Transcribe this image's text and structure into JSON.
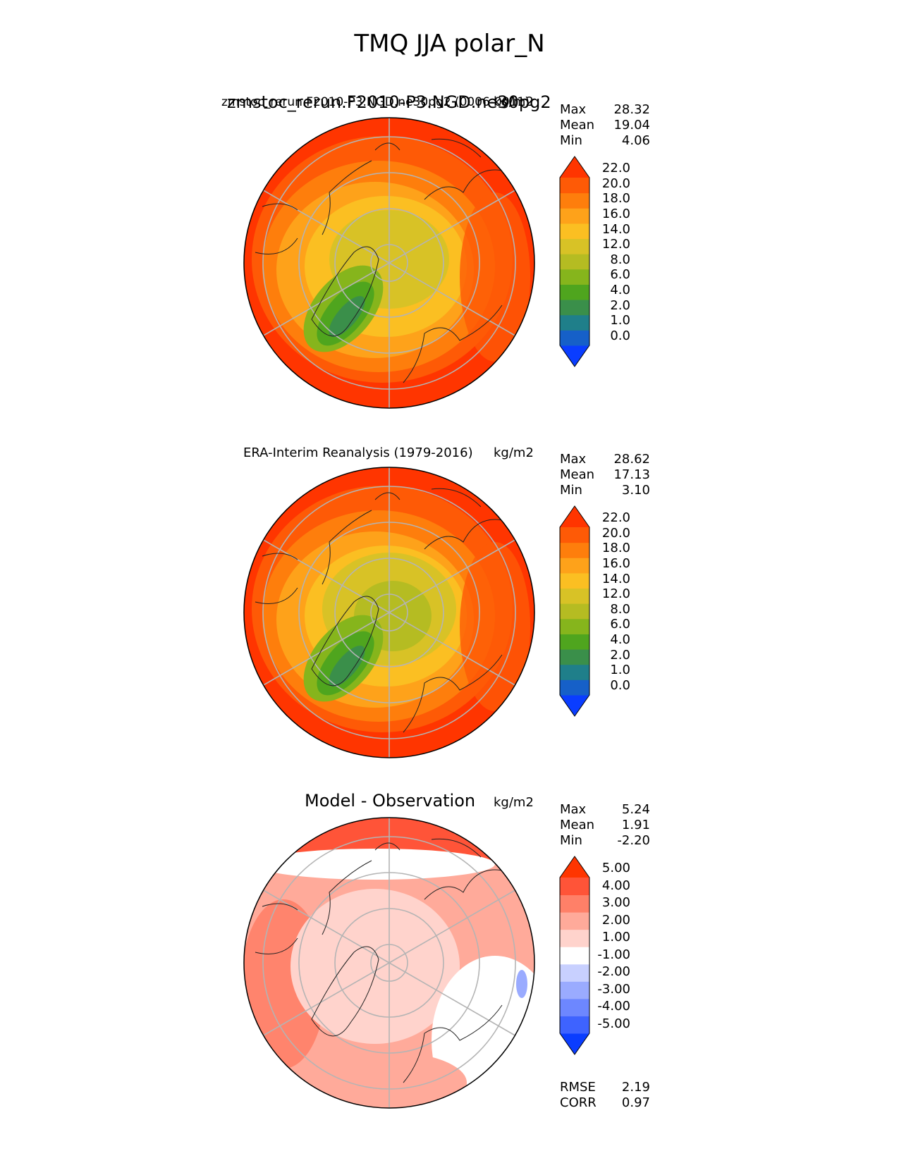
{
  "title": "TMQ JJA polar_N",
  "chart_data": [
    {
      "type": "heatmap",
      "projection": "north polar stereographic",
      "title": "zmstoc_rerun.F2010-P3.NGD.ne30pg2",
      "overlap_title": "zmstoc_rerun.F2010-P3.NGD.ne30pg2 (0006-0011)",
      "units": "kg/m2",
      "stats": [
        {
          "label": "Max",
          "value": "28.32"
        },
        {
          "label": "Mean",
          "value": "19.04"
        },
        {
          "label": "Min",
          "value": "4.06"
        }
      ],
      "colorbar": {
        "levels": [
          "0.0",
          "1.0",
          "2.0",
          "4.0",
          "6.0",
          "8.0",
          "12.0",
          "14.0",
          "16.0",
          "18.0",
          "20.0",
          "22.0"
        ],
        "colors": [
          "#0a3dff",
          "#1660c8",
          "#1f7f8a",
          "#3a8f4a",
          "#4fa51e",
          "#86b51c",
          "#b5bc22",
          "#d8c226",
          "#fbbf22",
          "#fea21a",
          "#fe7e0c",
          "#fe5a06",
          "#ff3500"
        ]
      }
    },
    {
      "type": "heatmap",
      "projection": "north polar stereographic",
      "title": "ERA-Interim Reanalysis (1979-2016)",
      "units": "kg/m2",
      "stats": [
        {
          "label": "Max",
          "value": "28.62"
        },
        {
          "label": "Mean",
          "value": "17.13"
        },
        {
          "label": "Min",
          "value": "3.10"
        }
      ],
      "colorbar": {
        "levels": [
          "0.0",
          "1.0",
          "2.0",
          "4.0",
          "6.0",
          "8.0",
          "12.0",
          "14.0",
          "16.0",
          "18.0",
          "20.0",
          "22.0"
        ],
        "colors": [
          "#0a3dff",
          "#1660c8",
          "#1f7f8a",
          "#3a8f4a",
          "#4fa51e",
          "#86b51c",
          "#b5bc22",
          "#d8c226",
          "#fbbf22",
          "#fea21a",
          "#fe7e0c",
          "#fe5a06",
          "#ff3500"
        ]
      }
    },
    {
      "type": "heatmap",
      "projection": "north polar stereographic",
      "title": "Model - Observation",
      "units": "kg/m2",
      "stats": [
        {
          "label": "Max",
          "value": "5.24"
        },
        {
          "label": "Mean",
          "value": "1.91"
        },
        {
          "label": "Min",
          "value": "-2.20"
        }
      ],
      "colorbar": {
        "levels": [
          "-5.00",
          "-4.00",
          "-3.00",
          "-2.00",
          "-1.00",
          "1.00",
          "2.00",
          "3.00",
          "4.00",
          "5.00"
        ],
        "colors": [
          "#0a3dff",
          "#3e63ff",
          "#6d87ff",
          "#9aabff",
          "#c8d0ff",
          "#ffffff",
          "#ffd3cc",
          "#ffaa9a",
          "#ff8068",
          "#ff5438",
          "#ff3500"
        ]
      },
      "metrics": [
        {
          "label": "RMSE",
          "value": "2.19"
        },
        {
          "label": "CORR",
          "value": "0.97"
        }
      ]
    }
  ]
}
